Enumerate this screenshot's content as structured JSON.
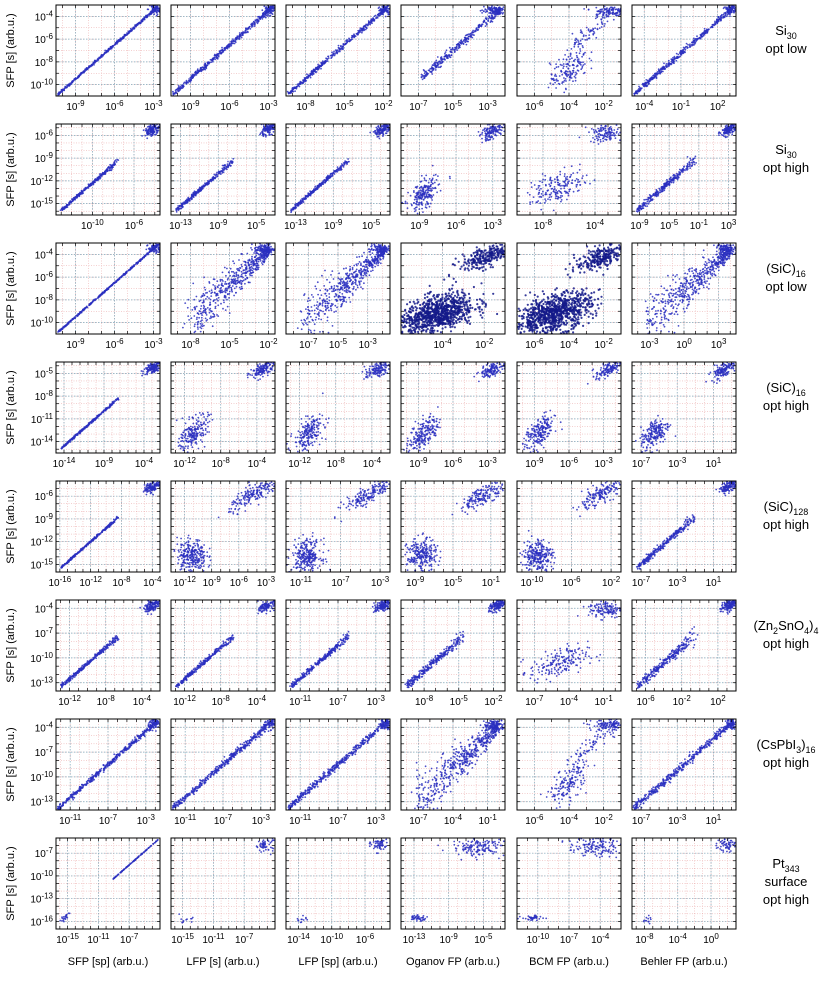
{
  "figure": {
    "x_axis_labels": [
      "SFP [sp] (arb.u.)",
      "LFP [s] (arb.u.)",
      "LFP [sp] (arb.u.)",
      "Oganov FP (arb.u.)",
      "BCM FP (arb.u.)",
      "Behler FP (arb.u.)"
    ],
    "y_axis_label": "SFP [s] (arb.u.)",
    "colors": {
      "points": "#2a2fbf",
      "dense_points": "#141a8a",
      "grid_red": "#e8a0a0",
      "grid_blue": "#7fa6b8"
    }
  },
  "chart_data": {
    "type": "scatter",
    "scale": "log-log",
    "rows": [
      {
        "name": "Si30 opt low",
        "label": [
          {
            "t": "Si"
          },
          {
            "t": "30",
            "sub": true
          }
        ],
        "label2": "opt low",
        "yticks": [
          "10^-4",
          "10^-6",
          "10^-8",
          "10^-10"
        ],
        "ylim_exp": [
          -11,
          -3
        ],
        "panels": [
          {
            "xticks": [
              "10^-9",
              "10^-6",
              "10^-3"
            ],
            "xlim_exp": [
              -10.5,
              -2.5
            ],
            "pattern": "line",
            "spread": 0.12
          },
          {
            "xticks": [
              "10^-9",
              "10^-6",
              "10^-3"
            ],
            "xlim_exp": [
              -10.5,
              -2.5
            ],
            "pattern": "line",
            "spread": 0.25
          },
          {
            "xticks": [
              "10^-8",
              "10^-5",
              "10^-2"
            ],
            "xlim_exp": [
              -9.5,
              -1.5
            ],
            "pattern": "line",
            "spread": 0.22
          },
          {
            "xticks": [
              "10^-7",
              "10^-5",
              "10^-3"
            ],
            "xlim_exp": [
              -8,
              -2
            ],
            "pattern": "line_top",
            "spread": 0.4
          },
          {
            "xticks": [
              "10^-6",
              "10^-4",
              "10^-2"
            ],
            "xlim_exp": [
              -7,
              -1
            ],
            "pattern": "blob_line",
            "spread": 0.8
          },
          {
            "xticks": [
              "10^-4",
              "10^-1",
              "10^2"
            ],
            "xlim_exp": [
              -5,
              3.5
            ],
            "pattern": "line",
            "spread": 0.25
          }
        ]
      },
      {
        "name": "Si30 opt high",
        "label": [
          {
            "t": "Si"
          },
          {
            "t": "30",
            "sub": true
          }
        ],
        "label2": "opt high",
        "yticks": [
          "10^-6",
          "10^-9",
          "10^-12",
          "10^-15"
        ],
        "ylim_exp": [
          -16.5,
          -4.5
        ],
        "panels": [
          {
            "xticks": [
              "10^-10",
              "10^-6"
            ],
            "xlim_exp": [
              -13.5,
              -3.5
            ],
            "pattern": "line_gap",
            "spread": 0.15
          },
          {
            "xticks": [
              "10^-13",
              "10^-9",
              "10^-5"
            ],
            "xlim_exp": [
              -14,
              -3
            ],
            "pattern": "line_gap",
            "spread": 0.2
          },
          {
            "xticks": [
              "10^-13",
              "10^-9",
              "10^-5"
            ],
            "xlim_exp": [
              -14,
              -3
            ],
            "pattern": "line_gap",
            "spread": 0.2
          },
          {
            "xticks": [
              "10^-9",
              "10^-6",
              "10^-3"
            ],
            "xlim_exp": [
              -10.5,
              -2
            ],
            "pattern": "blob_gap",
            "spread": 0.6
          },
          {
            "xticks": [
              "10^-8",
              "10^-4"
            ],
            "xlim_exp": [
              -10,
              -2
            ],
            "pattern": "scatter_gap",
            "spread": 1.0
          },
          {
            "xticks": [
              "10^-9",
              "10^-5",
              "10^-1",
              "10^3"
            ],
            "xlim_exp": [
              -10,
              4
            ],
            "pattern": "line_gap",
            "spread": 0.3
          }
        ]
      },
      {
        "name": "(SiC)16 opt low",
        "label": [
          {
            "t": "(SiC)"
          },
          {
            "t": "16",
            "sub": true
          }
        ],
        "label2": "opt low",
        "yticks": [
          "10^-4",
          "10^-6",
          "10^-8",
          "10^-10"
        ],
        "ylim_exp": [
          -11,
          -3
        ],
        "panels": [
          {
            "xticks": [
              "10^-9",
              "10^-6",
              "10^-3"
            ],
            "xlim_exp": [
              -10.5,
              -2.5
            ],
            "pattern": "line",
            "spread": 0.08
          },
          {
            "xticks": [
              "10^-8",
              "10^-5",
              "10^-2"
            ],
            "xlim_exp": [
              -9.5,
              -1.5
            ],
            "pattern": "fan",
            "spread": 0.5
          },
          {
            "xticks": [
              "10^-7",
              "10^-5",
              "10^-3"
            ],
            "xlim_exp": [
              -8.5,
              -1.5
            ],
            "pattern": "fan",
            "spread": 0.5
          },
          {
            "xticks": [
              "10^-4",
              "10^-2"
            ],
            "xlim_exp": [
              -6,
              -1
            ],
            "pattern": "dense_blob",
            "spread": 1.0
          },
          {
            "xticks": [
              "10^-6",
              "10^-4",
              "10^-2"
            ],
            "xlim_exp": [
              -7,
              -1
            ],
            "pattern": "dense_blob",
            "spread": 1.0
          },
          {
            "xticks": [
              "10^-3",
              "10^0",
              "10^3"
            ],
            "xlim_exp": [
              -4.5,
              4.5
            ],
            "pattern": "fan",
            "spread": 0.5
          }
        ]
      },
      {
        "name": "(SiC)16 opt high",
        "label": [
          {
            "t": "(SiC)"
          },
          {
            "t": "16",
            "sub": true
          }
        ],
        "label2": "opt high",
        "yticks": [
          "10^-5",
          "10^-8",
          "10^-11",
          "10^-14"
        ],
        "ylim_exp": [
          -15.5,
          -3.5
        ],
        "panels": [
          {
            "xticks": [
              "10^-14",
              "10^-9",
              "10^-4"
            ],
            "xlim_exp": [
              -15,
              -2
            ],
            "pattern": "line_gap",
            "spread": 0.1
          },
          {
            "xticks": [
              "10^-12",
              "10^-8",
              "10^-4"
            ],
            "xlim_exp": [
              -13.5,
              -2
            ],
            "pattern": "blob_gap",
            "spread": 0.5
          },
          {
            "xticks": [
              "10^-12",
              "10^-8",
              "10^-4"
            ],
            "xlim_exp": [
              -13.5,
              -2
            ],
            "pattern": "blob_gap",
            "spread": 0.5
          },
          {
            "xticks": [
              "10^-9",
              "10^-6",
              "10^-3"
            ],
            "xlim_exp": [
              -10.5,
              -1.5
            ],
            "pattern": "blob_gap",
            "spread": 0.7
          },
          {
            "xticks": [
              "10^-9",
              "10^-6",
              "10^-3"
            ],
            "xlim_exp": [
              -10.5,
              -1.5
            ],
            "pattern": "blob_gap",
            "spread": 0.8
          },
          {
            "xticks": [
              "10^-7",
              "10^-3",
              "10^1"
            ],
            "xlim_exp": [
              -8,
              3.5
            ],
            "pattern": "blob_gap",
            "spread": 0.5
          }
        ]
      },
      {
        "name": "(SiC)128 opt high",
        "label": [
          {
            "t": "(SiC)"
          },
          {
            "t": "128",
            "sub": true
          }
        ],
        "label2": "opt high",
        "yticks": [
          "10^-6",
          "10^-9",
          "10^-12",
          "10^-15"
        ],
        "ylim_exp": [
          -16,
          -4
        ],
        "panels": [
          {
            "xticks": [
              "10^-16",
              "10^-12",
              "10^-8",
              "10^-4"
            ],
            "xlim_exp": [
              -16.5,
              -3
            ],
            "pattern": "line_gap",
            "spread": 0.1
          },
          {
            "xticks": [
              "10^-12",
              "10^-9",
              "10^-6",
              "10^-3"
            ],
            "xlim_exp": [
              -13.5,
              -2
            ],
            "pattern": "two_cluster",
            "spread": 0.5
          },
          {
            "xticks": [
              "10^-11",
              "10^-7",
              "10^-3"
            ],
            "xlim_exp": [
              -12.5,
              -2
            ],
            "pattern": "two_cluster",
            "spread": 0.5
          },
          {
            "xticks": [
              "10^-9",
              "10^-5",
              "10^-1"
            ],
            "xlim_exp": [
              -10.5,
              0.5
            ],
            "pattern": "two_cluster",
            "spread": 0.7
          },
          {
            "xticks": [
              "10^-10",
              "10^-6",
              "10^-2"
            ],
            "xlim_exp": [
              -11.5,
              -1
            ],
            "pattern": "two_cluster",
            "spread": 0.8
          },
          {
            "xticks": [
              "10^-7",
              "10^-3",
              "10^1"
            ],
            "xlim_exp": [
              -8,
              3.5
            ],
            "pattern": "line_gap",
            "spread": 0.3
          }
        ]
      },
      {
        "name": "(Zn2SnO4)4 opt high",
        "label": [
          {
            "t": "(Zn"
          },
          {
            "t": "2",
            "sub": true
          },
          {
            "t": "SnO"
          },
          {
            "t": "4",
            "sub": true
          },
          {
            "t": ")"
          },
          {
            "t": "4",
            "sub": true
          }
        ],
        "label2": "opt high",
        "yticks": [
          "10^-4",
          "10^-7",
          "10^-10",
          "10^-13"
        ],
        "ylim_exp": [
          -14,
          -3
        ],
        "panels": [
          {
            "xticks": [
              "10^-12",
              "10^-8",
              "10^-4"
            ],
            "xlim_exp": [
              -13.5,
              -2
            ],
            "pattern": "line_gap",
            "spread": 0.2
          },
          {
            "xticks": [
              "10^-12",
              "10^-8",
              "10^-4"
            ],
            "xlim_exp": [
              -13.5,
              -2
            ],
            "pattern": "line_gap",
            "spread": 0.2
          },
          {
            "xticks": [
              "10^-11",
              "10^-7",
              "10^-3"
            ],
            "xlim_exp": [
              -12.5,
              -1.5
            ],
            "pattern": "line_gap",
            "spread": 0.25
          },
          {
            "xticks": [
              "10^-8",
              "10^-5",
              "10^-2"
            ],
            "xlim_exp": [
              -10,
              -1
            ],
            "pattern": "line_gap",
            "spread": 0.35
          },
          {
            "xticks": [
              "10^-7",
              "10^-4",
              "10^-1"
            ],
            "xlim_exp": [
              -8.5,
              0.5
            ],
            "pattern": "scatter_gap",
            "spread": 0.6
          },
          {
            "xticks": [
              "10^-6",
              "10^-2",
              "10^2"
            ],
            "xlim_exp": [
              -7.5,
              4
            ],
            "pattern": "line_gap",
            "spread": 0.45
          }
        ]
      },
      {
        "name": "(CsPbI3)16 opt high",
        "label": [
          {
            "t": "(CsPbI"
          },
          {
            "t": "3",
            "sub": true
          },
          {
            "t": ")"
          },
          {
            "t": "16",
            "sub": true
          }
        ],
        "label2": "opt high",
        "yticks": [
          "10^-4",
          "10^-7",
          "10^-10",
          "10^-13"
        ],
        "ylim_exp": [
          -14,
          -3
        ],
        "panels": [
          {
            "xticks": [
              "10^-11",
              "10^-7",
              "10^-3"
            ],
            "xlim_exp": [
              -12.5,
              -1.5
            ],
            "pattern": "line",
            "spread": 0.25
          },
          {
            "xticks": [
              "10^-11",
              "10^-7",
              "10^-3"
            ],
            "xlim_exp": [
              -12.5,
              -1.5
            ],
            "pattern": "line",
            "spread": 0.3
          },
          {
            "xticks": [
              "10^-11",
              "10^-7",
              "10^-3"
            ],
            "xlim_exp": [
              -12.5,
              -1.5
            ],
            "pattern": "line",
            "spread": 0.35
          },
          {
            "xticks": [
              "10^-7",
              "10^-4",
              "10^-1"
            ],
            "xlim_exp": [
              -8.5,
              0.5
            ],
            "pattern": "fan",
            "spread": 0.5
          },
          {
            "xticks": [
              "10^-6",
              "10^-4",
              "10^-2"
            ],
            "xlim_exp": [
              -7,
              -1
            ],
            "pattern": "blob_line",
            "spread": 0.8
          },
          {
            "xticks": [
              "10^-7",
              "10^-3",
              "10^1"
            ],
            "xlim_exp": [
              -8,
              3.5
            ],
            "pattern": "line",
            "spread": 0.35
          }
        ]
      },
      {
        "name": "Pt343 surface opt high",
        "label": [
          {
            "t": "Pt"
          },
          {
            "t": "343",
            "sub": true
          }
        ],
        "label2": "surface",
        "label3": "opt high",
        "yticks": [
          "10^-7",
          "10^-10",
          "10^-13",
          "10^-16"
        ],
        "ylim_exp": [
          -17,
          -5
        ],
        "panels": [
          {
            "xticks": [
              "10^-15",
              "10^-11",
              "10^-7"
            ],
            "xlim_exp": [
              -16.5,
              -3
            ],
            "pattern": "pt_line",
            "spread": 0.1
          },
          {
            "xticks": [
              "10^-15",
              "10^-11",
              "10^-7"
            ],
            "xlim_exp": [
              -16.5,
              -3
            ],
            "pattern": "pt_sparse",
            "spread": 0.2
          },
          {
            "xticks": [
              "10^-14",
              "10^-10",
              "10^-6"
            ],
            "xlim_exp": [
              -15.5,
              -3
            ],
            "pattern": "pt_sparse",
            "spread": 0.2
          },
          {
            "xticks": [
              "10^-13",
              "10^-9",
              "10^-5"
            ],
            "xlim_exp": [
              -14.5,
              -2.5
            ],
            "pattern": "pt_cluster",
            "spread": 0.3
          },
          {
            "xticks": [
              "10^-10",
              "10^-7",
              "10^-4"
            ],
            "xlim_exp": [
              -12,
              -2
            ],
            "pattern": "pt_cluster",
            "spread": 0.3
          },
          {
            "xticks": [
              "10^-8",
              "10^-4",
              "10^0"
            ],
            "xlim_exp": [
              -9.5,
              3
            ],
            "pattern": "pt_sparse",
            "spread": 0.2
          }
        ]
      }
    ]
  }
}
